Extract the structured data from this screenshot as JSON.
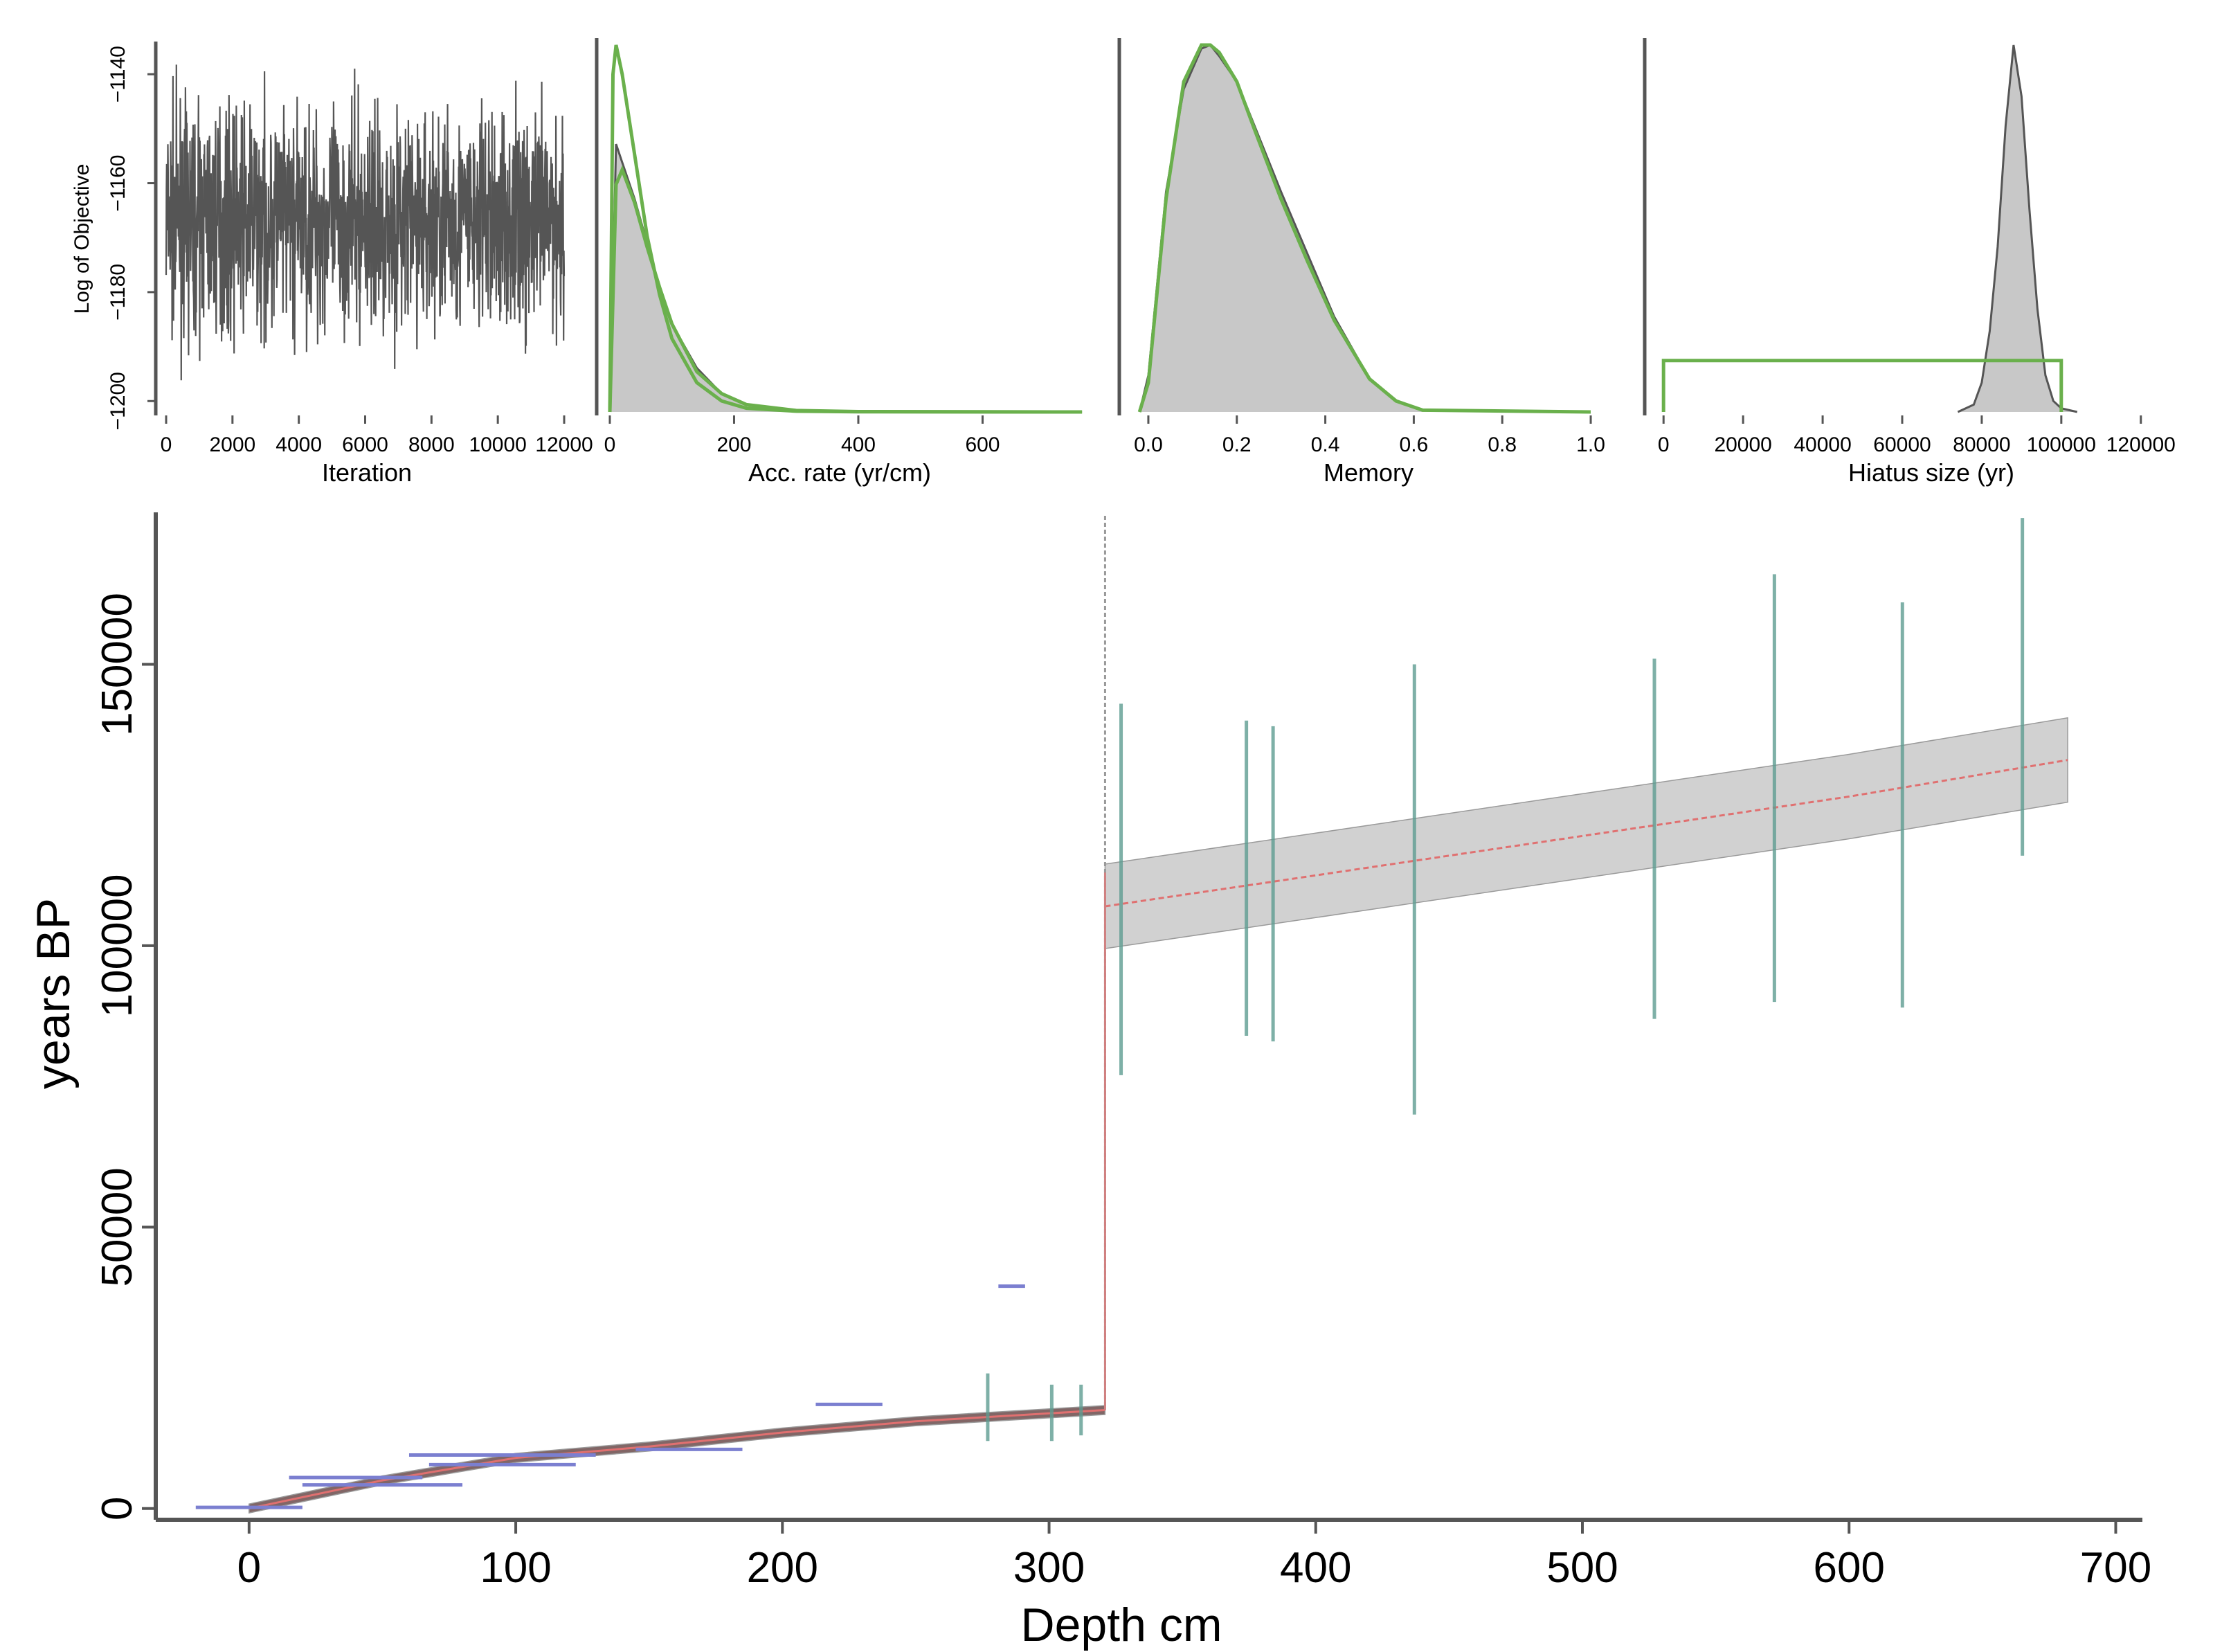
{
  "chart_data": [
    {
      "id": "iteration",
      "type": "line",
      "xlabel": "Iteration",
      "ylabel": "Log of Objective",
      "xlim": [
        0,
        12000
      ],
      "ylim": [
        -1202,
        -1134
      ],
      "xticks": [
        0,
        2000,
        4000,
        6000,
        8000,
        10000,
        12000
      ],
      "xtick_labels": [
        "0",
        "2000",
        "4000",
        "6000",
        "8000",
        "10000",
        "12000"
      ],
      "yticks": [
        -1140,
        -1160,
        -1180,
        -1200
      ],
      "ytick_labels": [
        "−1140",
        "−1160",
        "−1180",
        "−1200"
      ],
      "series": [
        {
          "name": "MCMC trace",
          "mean": -1167,
          "spread": 10,
          "min": -1200,
          "max": -1135,
          "color": "#555555"
        }
      ]
    },
    {
      "id": "acc-rate",
      "type": "area",
      "xlabel": "Acc. rate (yr/cm)",
      "xlim": [
        -10,
        790
      ],
      "xticks": [
        0,
        200,
        400,
        600
      ],
      "xtick_labels": [
        "0",
        "200",
        "400",
        "600"
      ],
      "series": [
        {
          "name": "posterior",
          "color": "#c8c8c8",
          "edge": "#555555",
          "x": [
            0,
            10,
            20,
            40,
            60,
            80,
            100,
            140,
            180,
            220,
            300,
            400,
            760
          ],
          "y": [
            0,
            0.73,
            0.68,
            0.58,
            0.46,
            0.34,
            0.24,
            0.12,
            0.05,
            0.02,
            0.005,
            0.001,
            0
          ]
        },
        {
          "name": "prior",
          "color": "#6ab04c",
          "x": [
            0,
            5,
            10,
            20,
            40,
            60,
            80,
            100,
            140,
            180,
            220,
            300,
            400,
            760
          ],
          "y": [
            0,
            0.92,
            1.0,
            0.92,
            0.7,
            0.48,
            0.32,
            0.2,
            0.08,
            0.03,
            0.01,
            0.002,
            0.0005,
            0
          ]
        },
        {
          "name": "prior 2",
          "color": "#6ab04c",
          "x": [
            0,
            10,
            20,
            40,
            60,
            80,
            100,
            140,
            180,
            220,
            300,
            400,
            760
          ],
          "y": [
            0,
            0.62,
            0.66,
            0.57,
            0.45,
            0.34,
            0.24,
            0.11,
            0.05,
            0.02,
            0.004,
            0.001,
            0
          ]
        }
      ]
    },
    {
      "id": "memory",
      "type": "area",
      "xlabel": "Memory",
      "xlim": [
        -0.05,
        1.05
      ],
      "xticks": [
        0.0,
        0.2,
        0.4,
        0.6,
        0.8,
        1.0
      ],
      "xtick_labels": [
        "0.0",
        "0.2",
        "0.4",
        "0.6",
        "0.8",
        "1.0"
      ],
      "series": [
        {
          "name": "posterior",
          "color": "#c8c8c8",
          "edge": "#555555",
          "x": [
            -0.02,
            0.0,
            0.04,
            0.08,
            0.12,
            0.14,
            0.16,
            0.2,
            0.24,
            0.3,
            0.36,
            0.42,
            0.5,
            0.56,
            0.62,
            1.0
          ],
          "y": [
            0,
            0.1,
            0.6,
            0.88,
            0.99,
            1.0,
            0.97,
            0.9,
            0.78,
            0.6,
            0.43,
            0.26,
            0.09,
            0.03,
            0.005,
            0
          ]
        },
        {
          "name": "prior",
          "color": "#6ab04c",
          "x": [
            -0.02,
            0.0,
            0.04,
            0.08,
            0.12,
            0.14,
            0.16,
            0.2,
            0.24,
            0.3,
            0.36,
            0.42,
            0.5,
            0.56,
            0.62,
            1.0
          ],
          "y": [
            0,
            0.08,
            0.58,
            0.9,
            1.0,
            1.0,
            0.98,
            0.9,
            0.77,
            0.58,
            0.41,
            0.25,
            0.09,
            0.03,
            0.005,
            0
          ]
        }
      ]
    },
    {
      "id": "hiatus",
      "type": "area",
      "xlabel": "Hiatus size (yr)",
      "xlim": [
        -3000,
        123000
      ],
      "xticks": [
        0,
        20000,
        40000,
        60000,
        80000,
        100000,
        120000
      ],
      "xtick_labels": [
        "0",
        "20000",
        "40000",
        "60000",
        "80000",
        "100000",
        "120000"
      ],
      "series": [
        {
          "name": "posterior",
          "color": "#c8c8c8",
          "edge": "#555555",
          "x": [
            74000,
            78000,
            80000,
            82000,
            84000,
            86000,
            88000,
            90000,
            92000,
            94000,
            96000,
            98000,
            100000,
            104000
          ],
          "y": [
            0,
            0.02,
            0.08,
            0.22,
            0.45,
            0.78,
            1.0,
            0.86,
            0.55,
            0.28,
            0.1,
            0.03,
            0.01,
            0
          ]
        },
        {
          "name": "prior",
          "color": "#6ab04c",
          "x": [
            0,
            0,
            100000,
            100000
          ],
          "y": [
            0,
            0.14,
            0.14,
            0
          ]
        }
      ]
    },
    {
      "id": "age-depth",
      "type": "scatter",
      "xlabel": "Depth cm",
      "ylabel": "years BP",
      "xlim": [
        -35,
        710
      ],
      "ylim": [
        -2000,
        177000
      ],
      "xticks": [
        0,
        100,
        200,
        300,
        400,
        500,
        600,
        700
      ],
      "xtick_labels": [
        "0",
        "100",
        "200",
        "300",
        "400",
        "500",
        "600",
        "700"
      ],
      "yticks": [
        0,
        50000,
        100000,
        150000
      ],
      "ytick_labels": [
        "0",
        "50000",
        "100000",
        "150000"
      ],
      "hiatus_depth": 321,
      "age_model": [
        {
          "segment": "upper",
          "depth": [
            0,
            50,
            100,
            150,
            200,
            250,
            321
          ],
          "age": [
            0,
            5000,
            9000,
            11000,
            13500,
            15500,
            17500
          ],
          "band": 800
        },
        {
          "segment": "lower",
          "depth": [
            321,
            400,
            500,
            600,
            682
          ],
          "age": [
            107000,
            112500,
            119500,
            126500,
            133000
          ],
          "band": 7500
        }
      ],
      "c14_dates": [
        {
          "depth": 0,
          "age": 200,
          "range": 40
        },
        {
          "depth": 40,
          "age": 5500,
          "range": 50
        },
        {
          "depth": 50,
          "age": 4200,
          "range": 60
        },
        {
          "depth": 95,
          "age": 9500,
          "range": 70
        },
        {
          "depth": 95,
          "age": 7800,
          "range": 55
        },
        {
          "depth": 165,
          "age": 10500,
          "range": 40
        },
        {
          "depth": 225,
          "age": 18500,
          "range": 25
        },
        {
          "depth": 286,
          "age": 39500,
          "range": 10
        }
      ],
      "osl_dates": [
        {
          "depth": 277,
          "age": 18000,
          "min": 12000,
          "max": 24000
        },
        {
          "depth": 301,
          "age": 17000,
          "min": 12000,
          "max": 22000
        },
        {
          "depth": 312,
          "age": 17500,
          "min": 13000,
          "max": 22000
        },
        {
          "depth": 327,
          "age": 110000,
          "min": 77000,
          "max": 143000
        },
        {
          "depth": 374,
          "age": 112000,
          "min": 84000,
          "max": 140000
        },
        {
          "depth": 384,
          "age": 111000,
          "min": 83000,
          "max": 139000
        },
        {
          "depth": 437,
          "age": 110000,
          "min": 70000,
          "max": 150000
        },
        {
          "depth": 527,
          "age": 119000,
          "min": 87000,
          "max": 151000
        },
        {
          "depth": 572,
          "age": 128000,
          "min": 90000,
          "max": 166000
        },
        {
          "depth": 620,
          "age": 125000,
          "min": 89000,
          "max": 161000
        },
        {
          "depth": 665,
          "age": 146000,
          "min": 116000,
          "max": 176000
        }
      ]
    }
  ]
}
